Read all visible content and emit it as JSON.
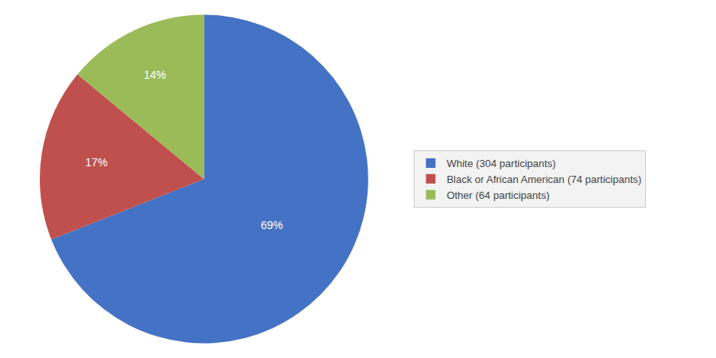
{
  "chart_data": {
    "type": "pie",
    "categories": [
      "White (304 participants)",
      "Black or African American (74 participants)",
      "Other (64 participants)"
    ],
    "values": [
      69,
      17,
      14
    ],
    "value_labels": [
      "69%",
      "17%",
      "14%"
    ],
    "colors": [
      "#4472C4",
      "#C0504D",
      "#9BBB59"
    ],
    "data_labels": true,
    "legend": "right"
  }
}
